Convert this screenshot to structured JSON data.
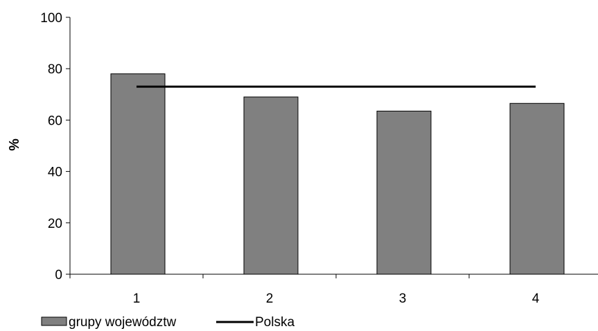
{
  "chart_data": {
    "type": "bar",
    "categories": [
      "1",
      "2",
      "3",
      "4"
    ],
    "series": [
      {
        "name": "grupy województw",
        "kind": "bar",
        "values": [
          78,
          69,
          63.5,
          66.5
        ],
        "color": "#808080"
      },
      {
        "name": "Polska",
        "kind": "line",
        "values": [
          73,
          73,
          73,
          73
        ],
        "color": "#000000"
      }
    ],
    "xlabel": "",
    "ylabel": "%",
    "ylim": [
      0,
      100
    ],
    "yticks": [
      "0",
      "20",
      "40",
      "60",
      "80",
      "100"
    ],
    "grid": false,
    "legend_position": "bottom-left"
  }
}
